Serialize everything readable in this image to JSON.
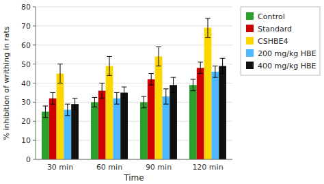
{
  "chart_data": {
    "type": "bar",
    "categories": [
      "30 min",
      "60 min",
      "90 min",
      "120 min"
    ],
    "series": [
      {
        "name": "Control",
        "color": "#2ca02c",
        "values": [
          25,
          30,
          30,
          39
        ],
        "errors": [
          3,
          2.5,
          3,
          3
        ]
      },
      {
        "name": "Standard",
        "color": "#cc0000",
        "values": [
          32,
          36,
          42,
          48
        ],
        "errors": [
          3,
          4,
          3,
          3
        ]
      },
      {
        "name": "CSHBE4",
        "color": "#FFD700",
        "values": [
          45,
          49,
          54,
          69
        ],
        "errors": [
          5,
          5,
          5,
          5
        ]
      },
      {
        "name": "200 mg/kg HBE",
        "color": "#4db8ff",
        "values": [
          26,
          32,
          33,
          46
        ],
        "errors": [
          3,
          3,
          4,
          3
        ]
      },
      {
        "name": "400 mg/kg HBE",
        "color": "#111111",
        "values": [
          29,
          35,
          39,
          49
        ],
        "errors": [
          3,
          3,
          4,
          4
        ]
      }
    ],
    "y_label": "% inhibition of writhing in rats",
    "x_label": "Time",
    "ylim": [
      0,
      80
    ],
    "yticks": [
      0,
      10,
      20,
      30,
      40,
      50,
      60,
      70,
      80
    ],
    "grid": true,
    "legend": "right"
  }
}
